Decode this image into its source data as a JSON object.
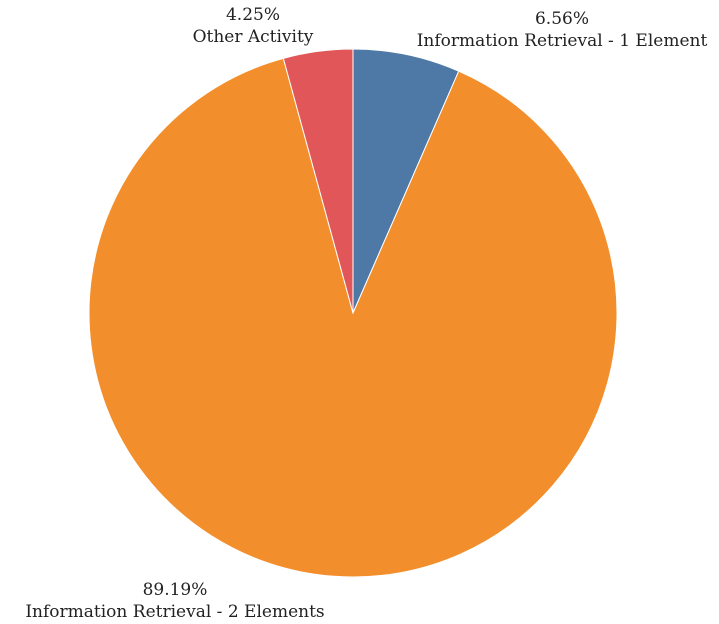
{
  "chart_data": {
    "type": "pie",
    "title": "",
    "start_angle_deg": 0,
    "direction": "clockwise",
    "slices": [
      {
        "name": "Information Retrieval - 1 Element",
        "value": 6.56,
        "label": "6.56%",
        "color": "#4e79a7"
      },
      {
        "name": "Information Retrieval - 2 Elements",
        "value": 89.19,
        "label": "89.19%",
        "color": "#f28e2b"
      },
      {
        "name": "Other Activity",
        "value": 4.25,
        "label": "4.25%",
        "color": "#e15759"
      }
    ]
  }
}
